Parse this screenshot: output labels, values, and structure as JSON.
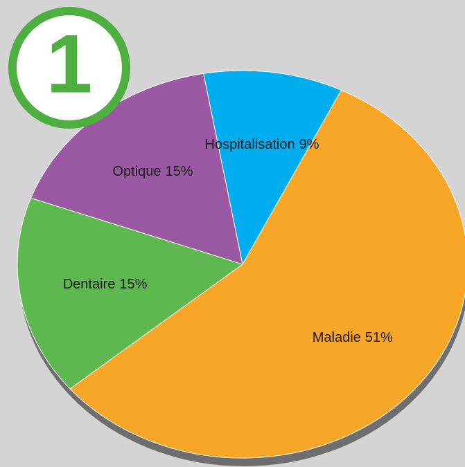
{
  "badge": "1",
  "chart_data": {
    "type": "pie",
    "categories": [
      "Hospitalisation",
      "Maladie",
      "Dentaire",
      "Optique"
    ],
    "values": [
      9,
      51,
      15,
      15
    ],
    "value_labels": [
      "9%",
      "51%",
      "15%",
      "15%"
    ],
    "colors": [
      "#00aeef",
      "#f7a628",
      "#5cb84f",
      "#9b59a4"
    ]
  }
}
